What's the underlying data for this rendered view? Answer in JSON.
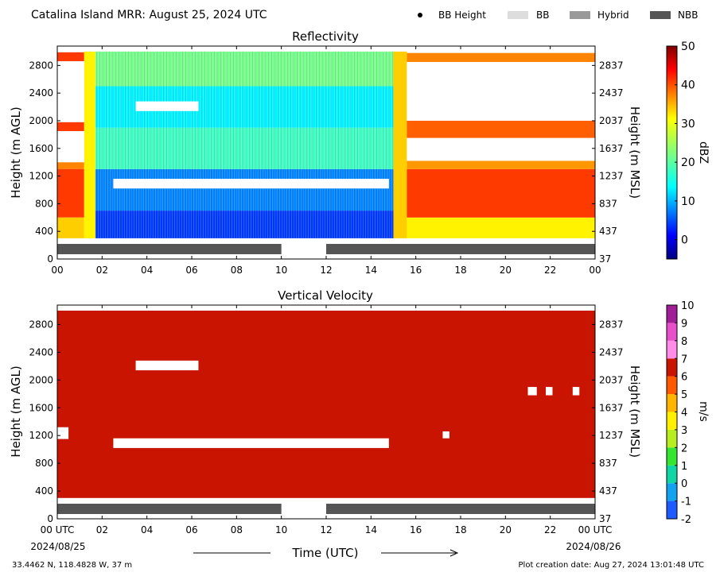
{
  "header": {
    "title": "Catalina Island MRR:  August 25, 2024 UTC",
    "legend": [
      {
        "label": "BB Height",
        "kind": "dot",
        "color": "#000000"
      },
      {
        "label": "BB",
        "kind": "patch",
        "color": "#dddddd"
      },
      {
        "label": "Hybrid",
        "kind": "patch",
        "color": "#999999"
      },
      {
        "label": "NBB",
        "kind": "patch",
        "color": "#555555"
      }
    ]
  },
  "footer": {
    "location": "33.4462 N, 118.4828 W, 37 m",
    "creation": "Plot creation date: Aug 27, 2024 13:01:48 UTC",
    "time_label": "Time (UTC)",
    "start_tick": "00 UTC",
    "end_tick": "00 UTC",
    "start_date": "2024/08/25",
    "end_date": "2024/08/26"
  },
  "chart_data": [
    {
      "type": "heatmap",
      "title": "Reflectivity",
      "ylabel": "Height (m AGL)",
      "ylabel_right": "Height (m MSL)",
      "colorbar_label": "dBZ",
      "xlim": [
        0,
        24
      ],
      "ylim": [
        0,
        3080
      ],
      "x_ticks": [
        "00",
        "02",
        "04",
        "06",
        "08",
        "10",
        "12",
        "14",
        "16",
        "18",
        "20",
        "22",
        "00"
      ],
      "y_ticks": [
        0,
        400,
        800,
        1200,
        1600,
        2000,
        2400,
        2800
      ],
      "y_ticks_right": [
        37,
        437,
        837,
        1237,
        1637,
        2037,
        2437,
        2837
      ],
      "colorbar": {
        "min": -5,
        "max": 50,
        "ticks": [
          0,
          10,
          20,
          30,
          40,
          50
        ],
        "colormap": "jet"
      },
      "data_height_range": [
        300,
        3000
      ],
      "valid_times_hours": [
        [
          0,
          10
        ],
        [
          12,
          24
        ]
      ],
      "layers": [
        {
          "t": [
            0.0,
            1.2
          ],
          "h": [
            2860,
            2990
          ],
          "v": 40
        },
        {
          "t": [
            0.0,
            1.2
          ],
          "h": [
            1850,
            1980
          ],
          "v": 40
        },
        {
          "t": [
            0.0,
            1.2
          ],
          "h": [
            1300,
            1400
          ],
          "v": 36
        },
        {
          "t": [
            0.0,
            1.2
          ],
          "h": [
            600,
            1300
          ],
          "v": 40
        },
        {
          "t": [
            0.0,
            1.2
          ],
          "h": [
            300,
            600
          ],
          "v": 32
        },
        {
          "t": [
            1.2,
            1.7
          ],
          "h": [
            300,
            3000
          ],
          "v": 30
        },
        {
          "t": [
            1.7,
            15.0
          ],
          "h": [
            300,
            700
          ],
          "v": 5
        },
        {
          "t": [
            1.7,
            15.0
          ],
          "h": [
            700,
            1300
          ],
          "v": 9
        },
        {
          "t": [
            1.7,
            15.0
          ],
          "h": [
            1300,
            1900
          ],
          "v": 19
        },
        {
          "t": [
            1.7,
            15.0
          ],
          "h": [
            1900,
            2500
          ],
          "v": 15
        },
        {
          "t": [
            1.7,
            15.0
          ],
          "h": [
            2500,
            3000
          ],
          "v": 22
        },
        {
          "t": [
            15.0,
            15.6
          ],
          "h": [
            300,
            3000
          ],
          "v": 32
        },
        {
          "t": [
            15.6,
            24.0
          ],
          "h": [
            300,
            600
          ],
          "v": 30
        },
        {
          "t": [
            15.6,
            24.0
          ],
          "h": [
            600,
            1300
          ],
          "v": 40
        },
        {
          "t": [
            15.6,
            24.0
          ],
          "h": [
            1300,
            1420
          ],
          "v": 35
        },
        {
          "t": [
            15.6,
            24.0
          ],
          "h": [
            1750,
            2000
          ],
          "v": 38
        },
        {
          "t": [
            15.6,
            24.0
          ],
          "h": [
            2850,
            2980
          ],
          "v": 36
        }
      ],
      "gaps": [
        {
          "t": [
            0.0,
            1.2
          ],
          "h": [
            1980,
            2860
          ]
        },
        {
          "t": [
            0.0,
            1.2
          ],
          "h": [
            1400,
            1850
          ]
        },
        {
          "t": [
            3.5,
            6.3
          ],
          "h": [
            2140,
            2280
          ]
        },
        {
          "t": [
            2.5,
            14.8
          ],
          "h": [
            1020,
            1160
          ]
        },
        {
          "t": [
            15.6,
            24.0
          ],
          "h": [
            1420,
            1750
          ]
        },
        {
          "t": [
            15.6,
            24.0
          ],
          "h": [
            2000,
            2850
          ]
        }
      ],
      "bb_bar": {
        "category": "NBB",
        "segments": [
          [
            0,
            10
          ],
          [
            12,
            24
          ]
        ]
      }
    },
    {
      "type": "heatmap",
      "title": "Vertical Velocity",
      "ylabel": "Height (m AGL)",
      "ylabel_right": "Height (m MSL)",
      "colorbar_label": "m/s",
      "xlim": [
        0,
        24
      ],
      "ylim": [
        0,
        3080
      ],
      "x_ticks": [
        "00 UTC",
        "02",
        "04",
        "06",
        "08",
        "10",
        "12",
        "14",
        "16",
        "18",
        "20",
        "22",
        "00 UTC"
      ],
      "y_ticks": [
        0,
        400,
        800,
        1200,
        1600,
        2000,
        2400,
        2800
      ],
      "y_ticks_right": [
        37,
        437,
        837,
        1237,
        1637,
        2037,
        2437,
        2837
      ],
      "colorbar": {
        "min": -2,
        "max": 10,
        "ticks": [
          -2,
          -1,
          0,
          1,
          2,
          3,
          4,
          5,
          6,
          7,
          8,
          9,
          10
        ],
        "segments": [
          {
            "from": -2,
            "to": -1,
            "color": "#1e5aff"
          },
          {
            "from": -1,
            "to": 0,
            "color": "#13a2f0"
          },
          {
            "from": 0,
            "to": 1,
            "color": "#10d6a4"
          },
          {
            "from": 1,
            "to": 2,
            "color": "#35e630"
          },
          {
            "from": 2,
            "to": 3,
            "color": "#b6ee1e"
          },
          {
            "from": 3,
            "to": 4,
            "color": "#fff000"
          },
          {
            "from": 4,
            "to": 5,
            "color": "#ffb400"
          },
          {
            "from": 5,
            "to": 6,
            "color": "#ff5a00"
          },
          {
            "from": 6,
            "to": 7,
            "color": "#c81400"
          },
          {
            "from": 7,
            "to": 8,
            "color": "#ff8ce6"
          },
          {
            "from": 8,
            "to": 9,
            "color": "#e650c8"
          },
          {
            "from": 9,
            "to": 10,
            "color": "#a01e96"
          }
        ]
      },
      "data_height_range": [
        300,
        3000
      ],
      "valid_times_hours": [
        [
          0,
          10
        ],
        [
          12,
          24
        ]
      ],
      "dominant_value": 6.5,
      "gaps": [
        {
          "t": [
            3.5,
            6.3
          ],
          "h": [
            2140,
            2280
          ]
        },
        {
          "t": [
            2.5,
            14.8
          ],
          "h": [
            1020,
            1160
          ]
        },
        {
          "t": [
            0.0,
            0.5
          ],
          "h": [
            1150,
            1320
          ]
        },
        {
          "t": [
            21.0,
            21.4
          ],
          "h": [
            1780,
            1900
          ]
        },
        {
          "t": [
            21.8,
            22.1
          ],
          "h": [
            1780,
            1900
          ]
        },
        {
          "t": [
            23.0,
            23.3
          ],
          "h": [
            1780,
            1900
          ]
        },
        {
          "t": [
            17.2,
            17.5
          ],
          "h": [
            1160,
            1260
          ]
        }
      ],
      "bb_bar": {
        "category": "NBB",
        "segments": [
          [
            0,
            10
          ],
          [
            12,
            24
          ]
        ]
      }
    }
  ]
}
